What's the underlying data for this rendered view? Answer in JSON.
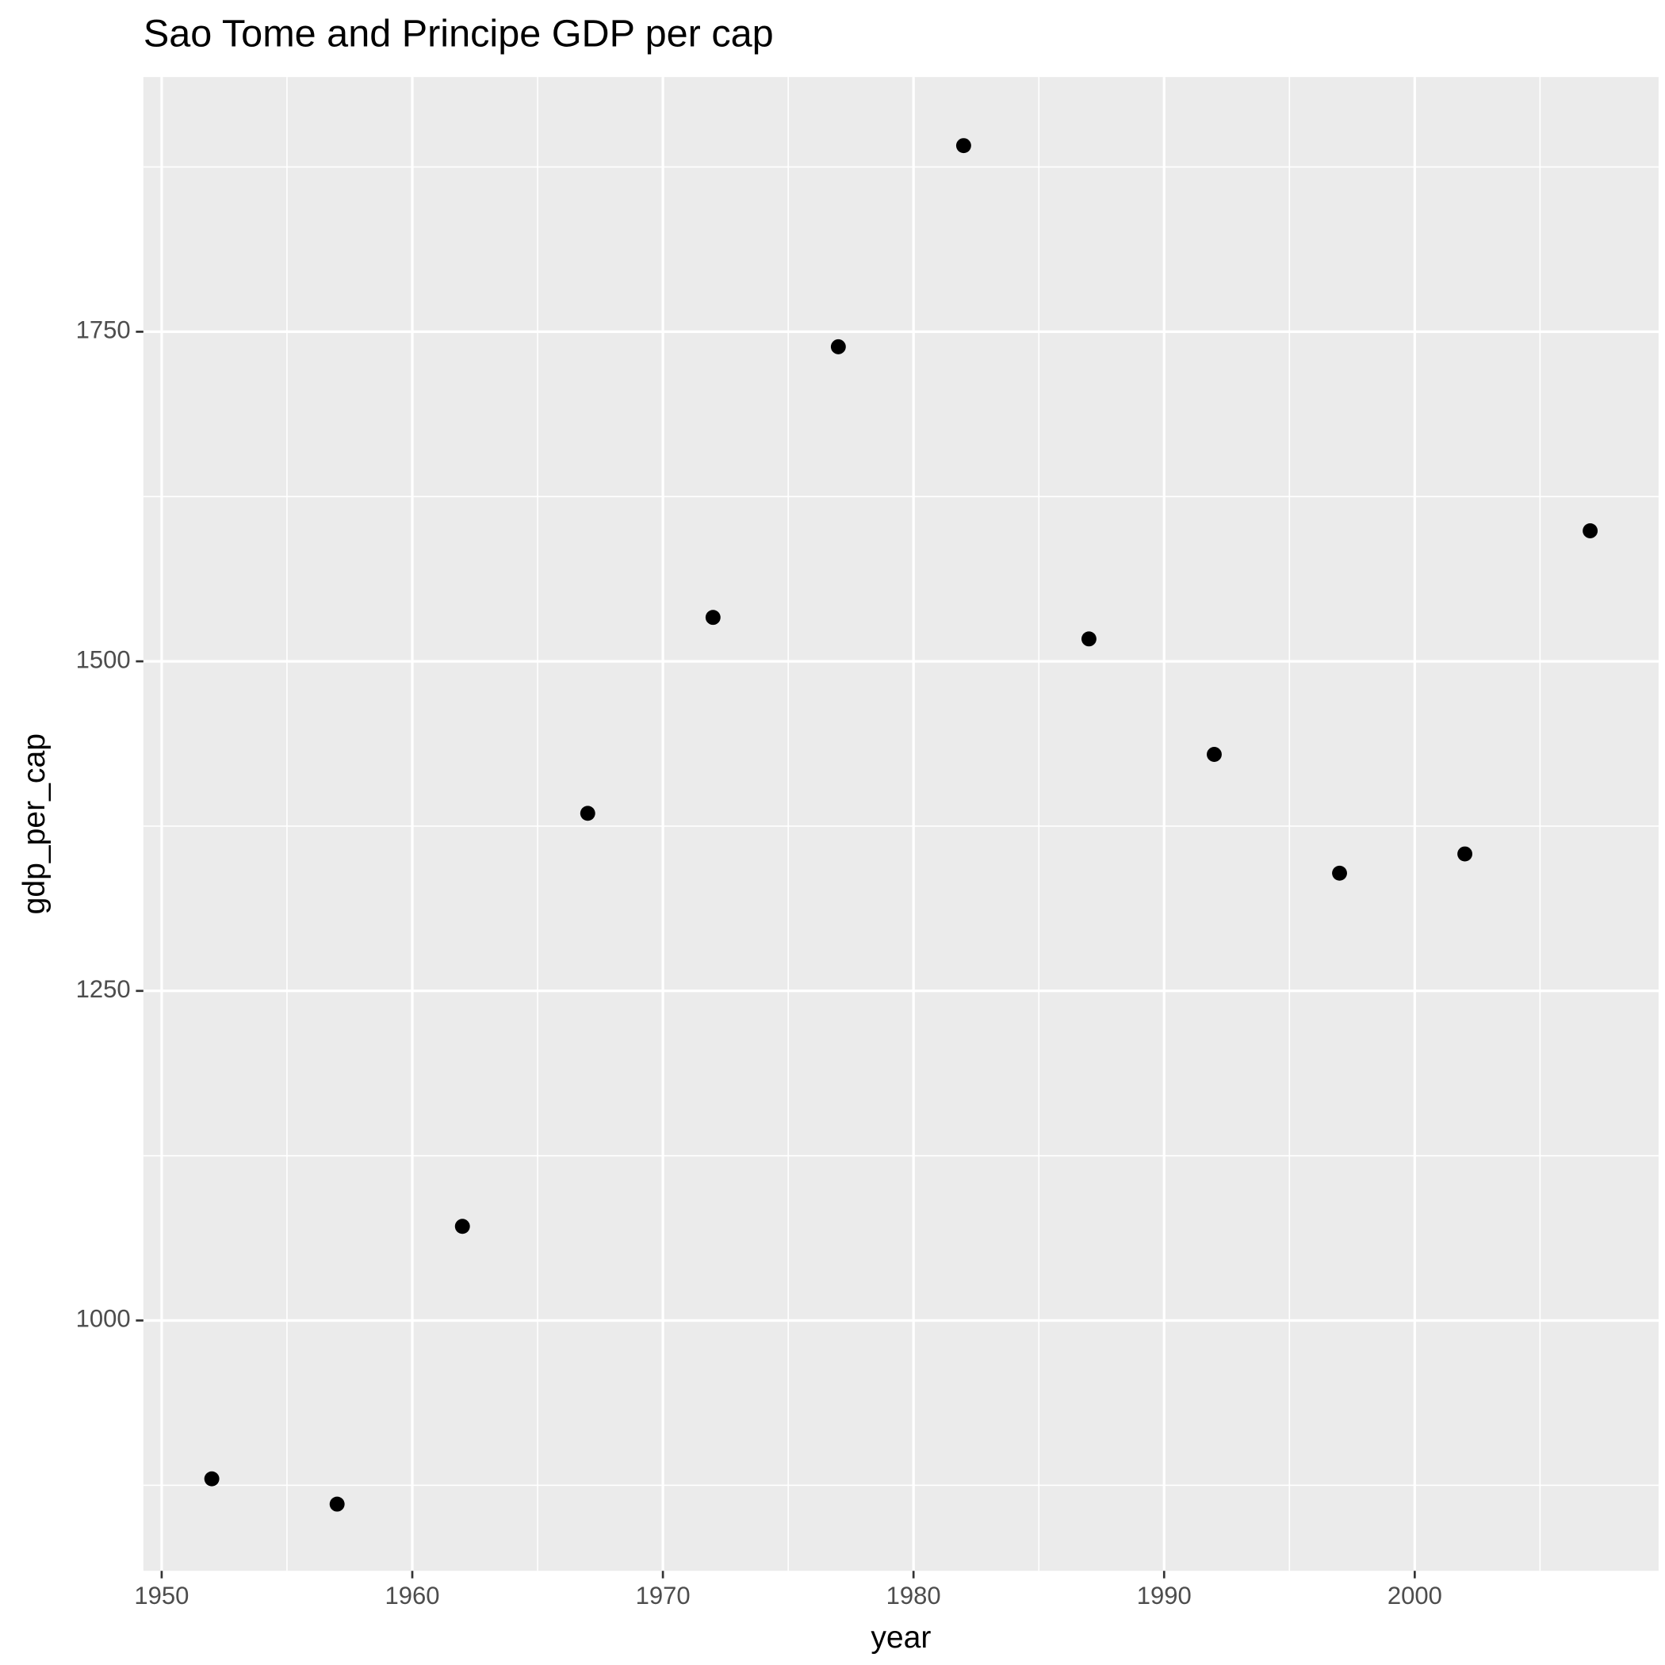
{
  "chart_data": {
    "type": "scatter",
    "title": "Sao Tome and Principe GDP per cap",
    "x_label": "year",
    "y_label": "gdp_per_cap",
    "x": [
      1952,
      1957,
      1962,
      1967,
      1972,
      1977,
      1982,
      1987,
      1992,
      1997,
      2002,
      2007
    ],
    "series": [
      {
        "name": "gdp_per_cap",
        "color": "#000000",
        "values": [
          879.9,
          860.7,
          1071.4,
          1384.7,
          1533.3,
          1738.6,
          1891.2,
          1517.0,
          1429.4,
          1339.3,
          1353.9,
          1599.0
        ]
      }
    ],
    "xlim": [
      1949.27,
      2009.73
    ],
    "xticks": [
      1950,
      1960,
      1970,
      1980,
      1990,
      2000
    ],
    "ylim": [
      810.1,
      1943.2
    ],
    "yticks": [
      1000,
      1250,
      1500,
      1750
    ],
    "grid": true
  }
}
